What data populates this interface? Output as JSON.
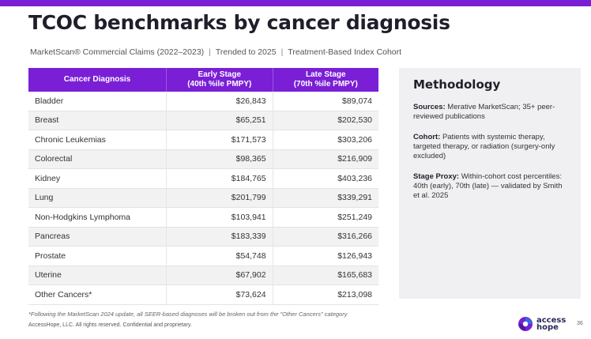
{
  "title": "TCOC benchmarks by cancer diagnosis",
  "subtitle": {
    "part1": "MarketScan® Commercial Claims (2022–2023)",
    "part2": "Trended to 2025",
    "part3": "Treatment-Based Index Cohort",
    "separator": "|"
  },
  "table": {
    "headers": {
      "diagnosis": "Cancer Diagnosis",
      "early_line1": "Early Stage",
      "early_line2": "(40th %ile PMPY)",
      "late_line1": "Late Stage",
      "late_line2": "(70th %ile PMPY)"
    },
    "rows": [
      {
        "name": "Bladder",
        "early": "$26,843",
        "late": "$89,074"
      },
      {
        "name": "Breast",
        "early": "$65,251",
        "late": "$202,530"
      },
      {
        "name": "Chronic Leukemias",
        "early": "$171,573",
        "late": "$303,206"
      },
      {
        "name": "Colorectal",
        "early": "$98,365",
        "late": "$216,909"
      },
      {
        "name": "Kidney",
        "early": "$184,765",
        "late": "$403,236"
      },
      {
        "name": "Lung",
        "early": "$201,799",
        "late": "$339,291"
      },
      {
        "name": "Non-Hodgkins Lymphoma",
        "early": "$103,941",
        "late": "$251,249"
      },
      {
        "name": "Pancreas",
        "early": "$183,339",
        "late": "$316,266"
      },
      {
        "name": "Prostate",
        "early": "$54,748",
        "late": "$126,943"
      },
      {
        "name": "Uterine",
        "early": "$67,902",
        "late": "$165,683"
      },
      {
        "name": "Other Cancers*",
        "early": "$73,624",
        "late": "$213,098"
      }
    ]
  },
  "methodology": {
    "title": "Methodology",
    "sources_label": "Sources:",
    "sources_text": "Merative MarketScan; 35+ peer-reviewed publications",
    "cohort_label": "Cohort:",
    "cohort_text": "Patients with systemic therapy, targeted therapy, or radiation (surgery-only excluded)",
    "stage_label": "Stage Proxy:",
    "stage_text": "Within-cohort cost percentiles: 40th (early), 70th (late) — validated by Smith et al. 2025"
  },
  "footnote": "*Following the MarketScan 2024 update, all SEER-based diagnoses will be broken out from the \"Other Cancers\" category",
  "copyright": "AccessHope, LLC. All rights reserved. Confidential and proprietary.",
  "logo": {
    "line1": "access",
    "line2": "hope"
  },
  "page_number": "36",
  "colors": {
    "accent": "#7a1fd6",
    "methodology_bg": "#f0f0f2",
    "row_alt": "#f2f2f2"
  }
}
